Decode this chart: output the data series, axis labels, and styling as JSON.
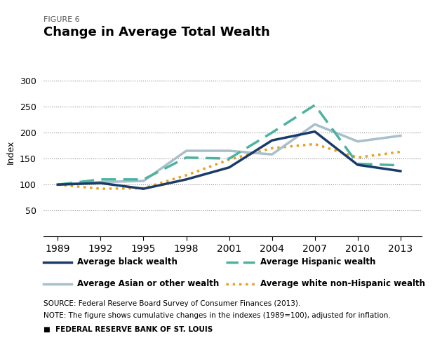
{
  "years": [
    1989,
    1992,
    1995,
    1998,
    2001,
    2004,
    2007,
    2010,
    2013
  ],
  "black_wealth": [
    100,
    103,
    92,
    110,
    133,
    185,
    202,
    138,
    126
  ],
  "hispanic_wealth": [
    100,
    110,
    110,
    152,
    150,
    200,
    253,
    140,
    137
  ],
  "asian_wealth": [
    100,
    105,
    107,
    165,
    165,
    158,
    216,
    183,
    194
  ],
  "white_wealth": [
    100,
    92,
    93,
    118,
    148,
    170,
    178,
    152,
    163
  ],
  "title": "Change in Average Total Wealth",
  "figure_label": "FIGURE 6",
  "ylabel": "Index",
  "source_text": "SOURCE: Federal Reserve Board Survey of Consumer Finances (2013).",
  "note_text": "NOTE: The figure shows cumulative changes in the indexes (1989=100), adjusted for inflation.",
  "footer_text": "■  FEDERAL RESERVE BANK OF ST. LOUIS",
  "legend_labels": [
    "Average black wealth",
    "Average Hispanic wealth",
    "Average Asian or other wealth",
    "Average white non-Hispanic wealth"
  ],
  "black_color": "#1a3a6b",
  "hispanic_color": "#4db3a0",
  "asian_color": "#a8bfcc",
  "white_color": "#e8a020",
  "ylim": [
    0,
    325
  ],
  "yticks": [
    0,
    50,
    100,
    150,
    200,
    250,
    300
  ],
  "background_color": "#ffffff",
  "grid_color": "#888888"
}
